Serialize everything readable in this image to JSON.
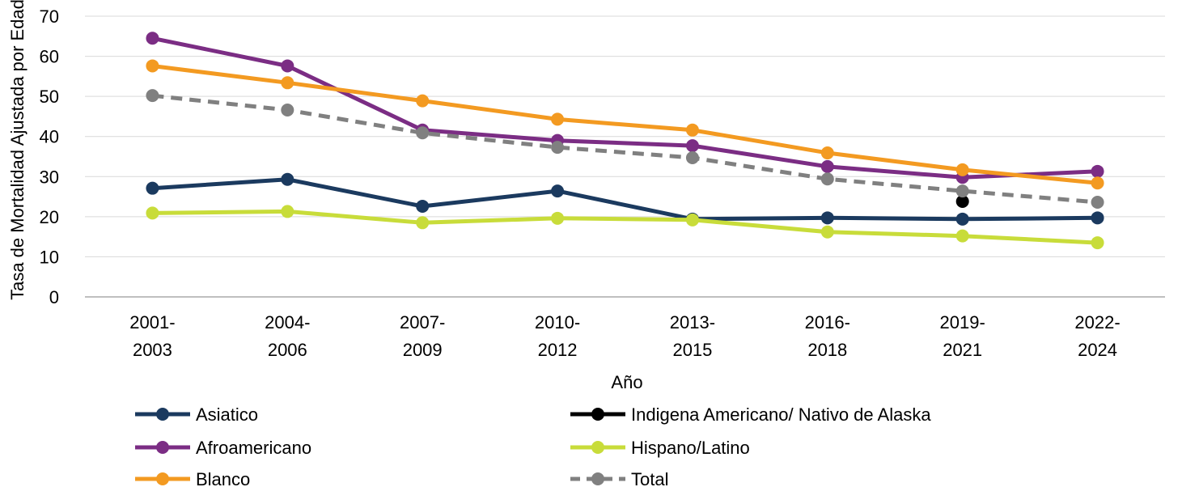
{
  "chart_data": {
    "type": "line",
    "title": "",
    "xlabel": "Año",
    "ylabel": "Tasa de Mortalidad Ajustada por Edad",
    "ylim": [
      0,
      70
    ],
    "yticks": [
      0,
      10,
      20,
      30,
      40,
      50,
      60,
      70
    ],
    "grid": "horizontal",
    "legend_position": "bottom",
    "categories": [
      [
        "2001-",
        "2003"
      ],
      [
        "2004-",
        "2006"
      ],
      [
        "2007-",
        "2009"
      ],
      [
        "2010-",
        "2012"
      ],
      [
        "2013-",
        "2015"
      ],
      [
        "2016-",
        "2018"
      ],
      [
        "2019-",
        "2021"
      ],
      [
        "2022-",
        "2024"
      ]
    ],
    "series": [
      {
        "name": "Asiatico",
        "color": "#1b3a5f",
        "dashed": false,
        "values": [
          27.1,
          29.3,
          22.6,
          26.4,
          19.4,
          19.7,
          19.4,
          19.7
        ]
      },
      {
        "name": "Indigena Americano/ Nativo de Alaska",
        "color": "#000000",
        "dashed": false,
        "values": [
          null,
          null,
          null,
          null,
          null,
          null,
          23.8,
          null
        ]
      },
      {
        "name": "Afroamericano",
        "color": "#7b2d84",
        "dashed": false,
        "values": [
          64.5,
          57.6,
          41.6,
          39.0,
          37.7,
          32.5,
          29.8,
          31.3
        ]
      },
      {
        "name": "Hispano/Latino",
        "color": "#c8dc3a",
        "dashed": false,
        "values": [
          20.9,
          21.3,
          18.5,
          19.6,
          19.2,
          16.2,
          15.2,
          13.5
        ]
      },
      {
        "name": "Blanco",
        "color": "#f39a21",
        "dashed": false,
        "values": [
          57.6,
          53.4,
          48.9,
          44.3,
          41.6,
          35.9,
          31.7,
          28.4
        ]
      },
      {
        "name": "Total",
        "color": "#808080",
        "dashed": true,
        "values": [
          50.2,
          46.6,
          40.9,
          37.3,
          34.7,
          29.4,
          26.4,
          23.6
        ]
      }
    ]
  }
}
